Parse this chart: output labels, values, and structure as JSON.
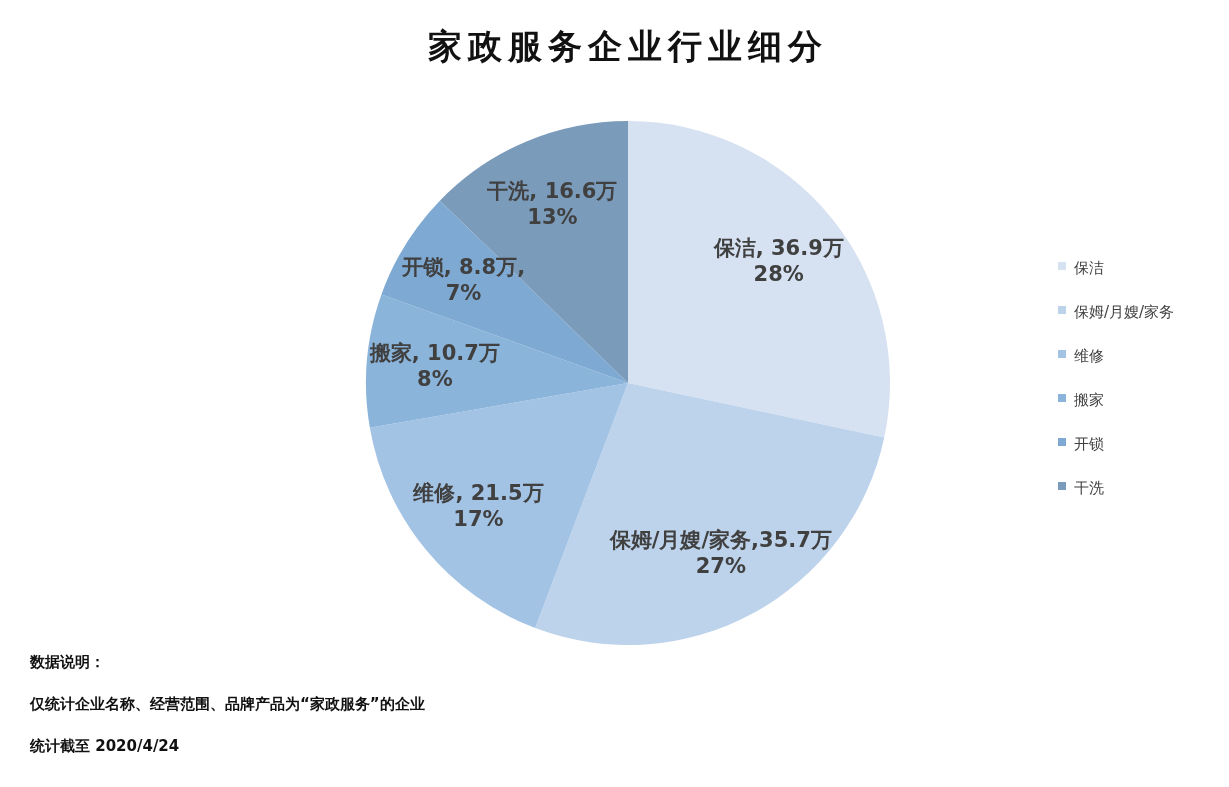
{
  "chart_data": {
    "type": "pie",
    "title": "家政服务企业行业细分",
    "categories": [
      "保洁",
      "保姆/月嫂/家务",
      "维修",
      "搬家",
      "开锁",
      "干洗"
    ],
    "values": [
      36.9,
      35.7,
      21.5,
      10.7,
      8.8,
      16.6
    ],
    "colors": [
      "#d6e1f1",
      "#bdd3eb",
      "#a3c3e5",
      "#8ab4da",
      "#7ea9d2",
      "#7b9bbb"
    ],
    "value_labels": [
      "保洁, 36.9万\n28%",
      "保姆/月嫂/家务,35.7万\n27%",
      "维修, 21.5万\n17%",
      "搬家, 10.7万\n8%",
      "开锁, 8.8万,\n7%",
      "干洗, 16.6万\n13%"
    ],
    "legend": "right",
    "annotations": [
      "数据说明：",
      "仅统计企业名称、经营范围、品牌产品为“家政服务”的企业",
      "统计截至 2020/4/24"
    ]
  }
}
